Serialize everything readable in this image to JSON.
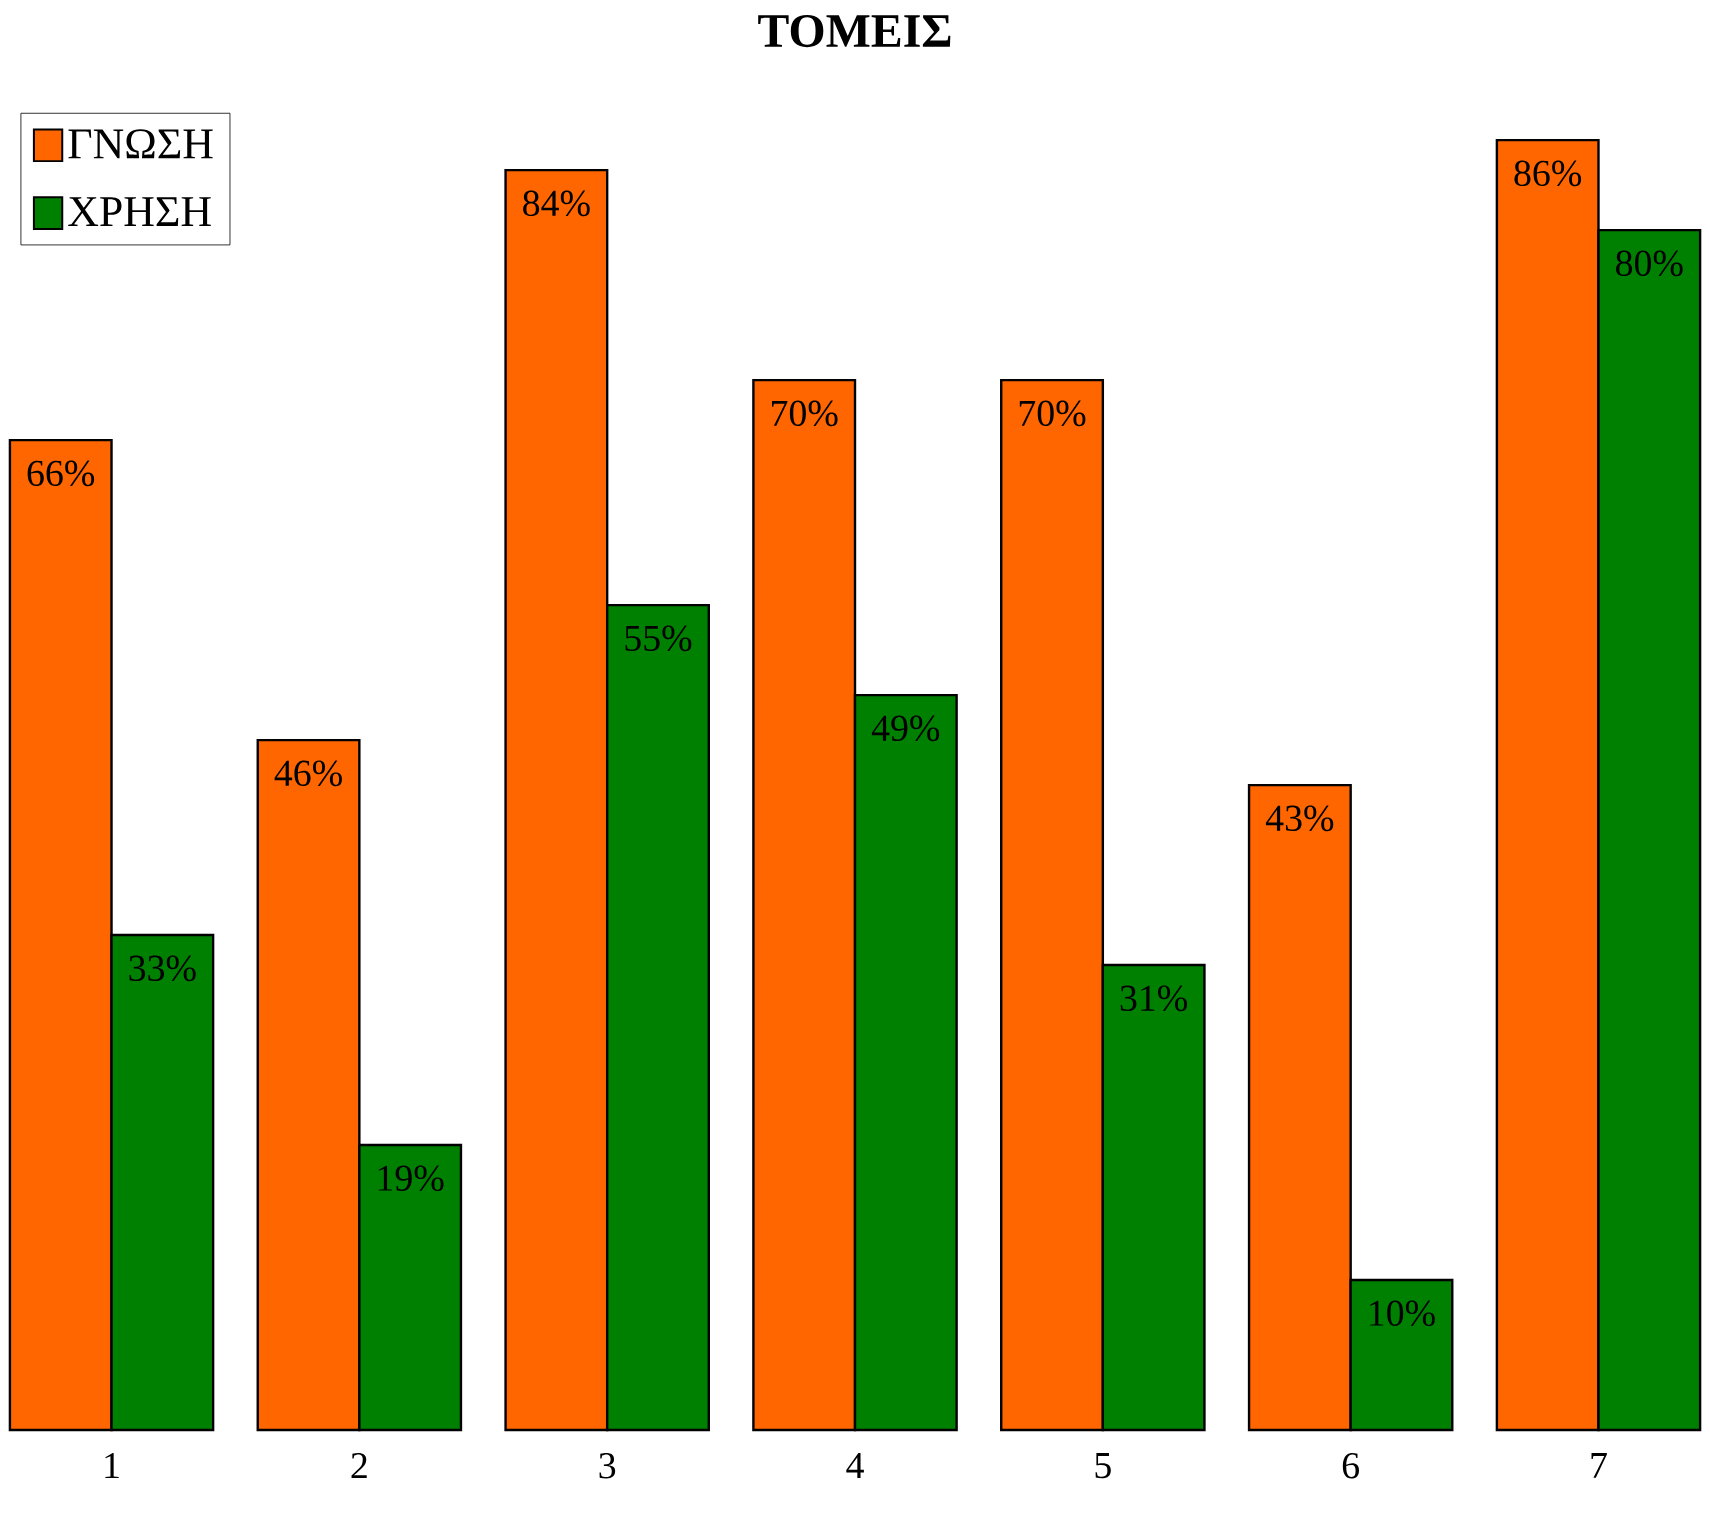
{
  "chart_data": {
    "type": "bar",
    "title": "ΤΟΜΕΙΣ",
    "categories": [
      "1",
      "2",
      "3",
      "4",
      "5",
      "6",
      "7"
    ],
    "series": [
      {
        "name": "ΓΝΩΣΗ",
        "color": "#ff6600",
        "values": [
          66,
          46,
          84,
          70,
          70,
          43,
          86
        ],
        "value_labels": [
          "66%",
          "46%",
          "84%",
          "70%",
          "70%",
          "43%",
          "86%"
        ]
      },
      {
        "name": "ΧΡΗΣΗ",
        "color": "#008000",
        "values": [
          33,
          19,
          55,
          49,
          31,
          10,
          80
        ],
        "value_labels": [
          "33%",
          "19%",
          "55%",
          "49%",
          "31%",
          "10%",
          "80%"
        ]
      }
    ],
    "legend": "top left"
  }
}
